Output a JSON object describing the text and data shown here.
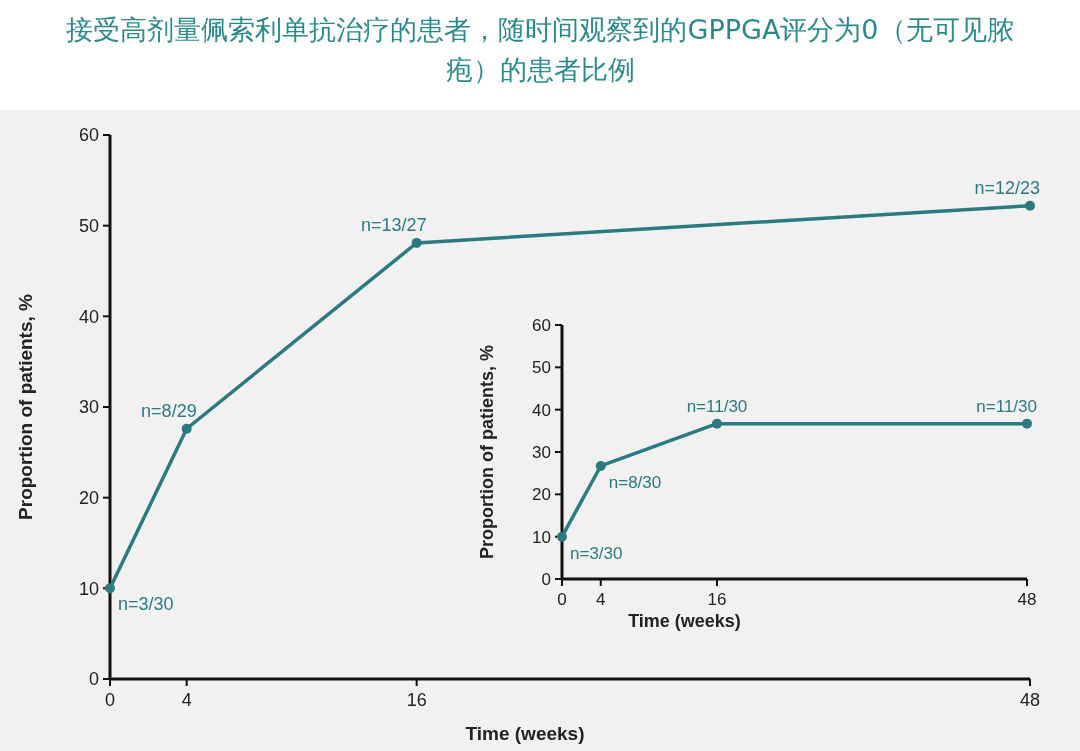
{
  "chart_data": [
    {
      "type": "line",
      "title": "接受高剂量佩索利单抗治疗的患者，随时间观察到的GPPGA评分为0（无可见脓疱）的患者比例",
      "xlabel": "Time (weeks)",
      "ylabel": "Proportion of patients, %",
      "x": [
        0,
        4,
        16,
        48
      ],
      "xlim": [
        0,
        48
      ],
      "xticks": [
        0,
        4,
        16,
        48
      ],
      "ylim": [
        0,
        60
      ],
      "yticks": [
        0,
        10,
        20,
        30,
        40,
        50,
        60
      ],
      "marker": "circle",
      "series": [
        {
          "color": "#2b7a80",
          "values": [
            10,
            27.6,
            48.1,
            52.2
          ]
        }
      ],
      "annotations": [
        {
          "text": "n=3/30",
          "x": 0,
          "y": 10
        },
        {
          "text": "n=8/29",
          "x": 4,
          "y": 27.6
        },
        {
          "text": "n=13/27",
          "x": 16,
          "y": 48.1
        },
        {
          "text": "n=12/23",
          "x": 48,
          "y": 52.2
        }
      ]
    },
    {
      "type": "line",
      "xlabel": "Time (weeks)",
      "ylabel": "Proportion of patients, %",
      "x": [
        0,
        4,
        16,
        48
      ],
      "xlim": [
        0,
        48
      ],
      "xticks": [
        0,
        4,
        16,
        48
      ],
      "ylim": [
        0,
        60
      ],
      "yticks": [
        0,
        10,
        20,
        30,
        40,
        50,
        60
      ],
      "marker": "circle",
      "series": [
        {
          "color": "#2b7a80",
          "values": [
            10,
            26.7,
            36.7,
            36.7
          ]
        }
      ],
      "annotations": [
        {
          "text": "n=3/30",
          "x": 0,
          "y": 10
        },
        {
          "text": "n=8/30",
          "x": 4,
          "y": 26.7
        },
        {
          "text": "n=11/30",
          "x": 16,
          "y": 36.7
        },
        {
          "text": "n=11/30",
          "x": 48,
          "y": 36.7
        }
      ]
    }
  ]
}
